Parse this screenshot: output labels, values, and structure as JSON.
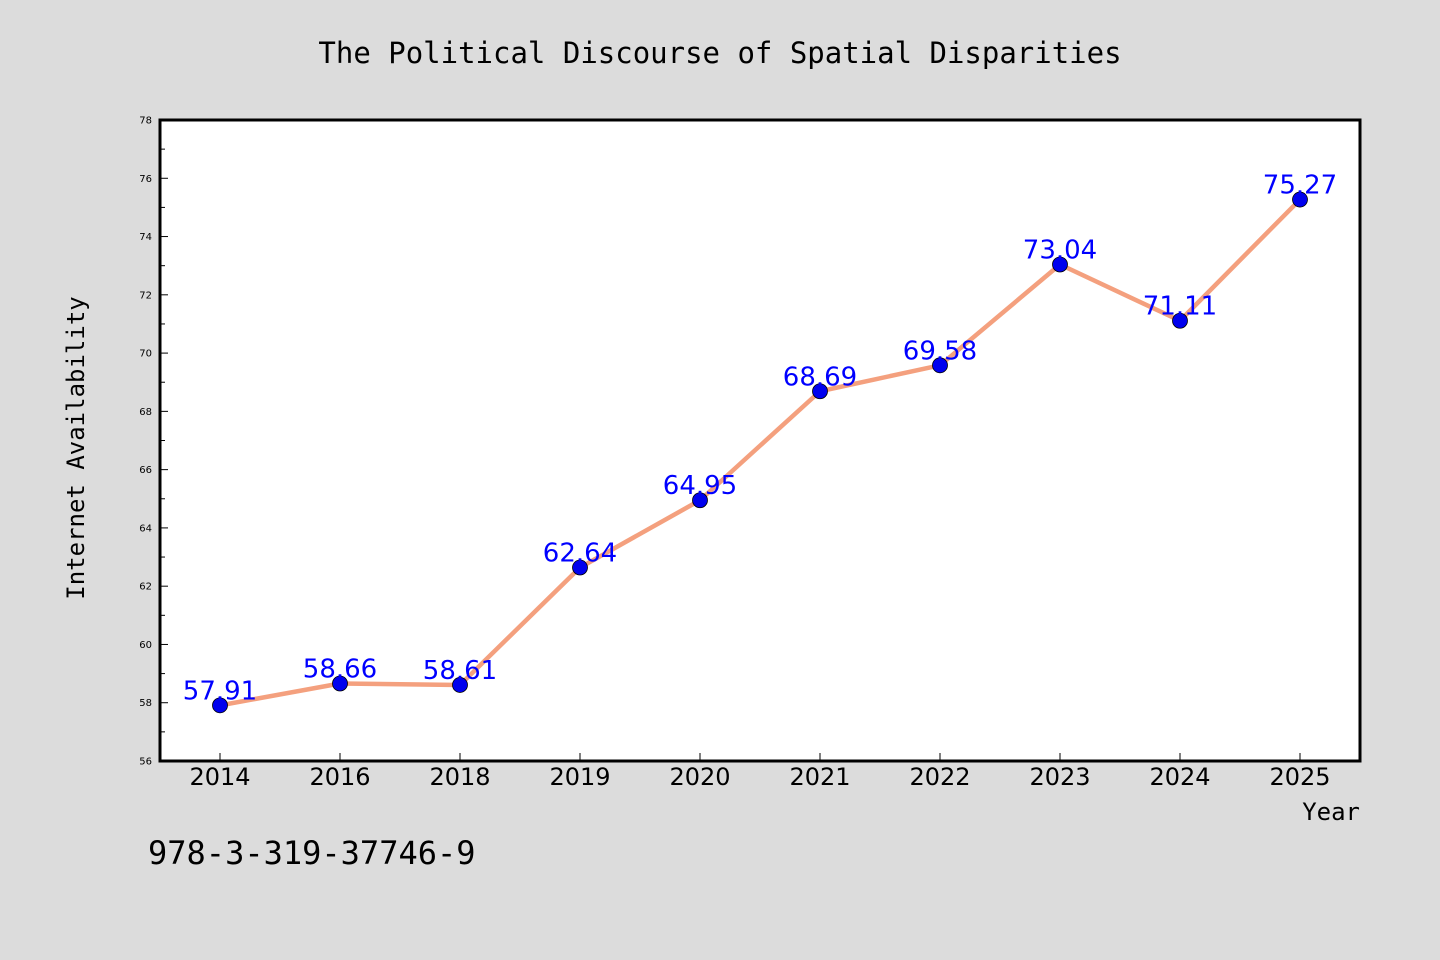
{
  "chart_data": {
    "type": "line",
    "title": "The Political Discourse of Spatial Disparities",
    "xlabel": "Year",
    "ylabel": "Internet Availability",
    "categories": [
      "2014",
      "2016",
      "2018",
      "2019",
      "2020",
      "2021",
      "2022",
      "2023",
      "2024",
      "2025"
    ],
    "series": [
      {
        "values": [
          57.91,
          58.66,
          58.61,
          62.64,
          64.95,
          68.69,
          69.58,
          73.04,
          71.11,
          75.27
        ],
        "labels": [
          "57.91",
          "58.66",
          "58.61",
          "62.64",
          "64.95",
          "68.69",
          "69.58",
          "73.04",
          "71.11",
          "75.27"
        ]
      }
    ],
    "ylim": [
      56,
      78
    ],
    "yticks": [
      "56",
      "58",
      "60",
      "62",
      "64",
      "66",
      "68",
      "70",
      "72",
      "74",
      "76",
      "78"
    ],
    "grid": false,
    "colors": {
      "line": "#f4a07e",
      "marker": "#0000ee",
      "data_label": "#0000ff",
      "background": "#dcdcdc",
      "plot_background": "#ffffff"
    }
  },
  "footer": {
    "isbn": "978-3-319-37746-9"
  }
}
